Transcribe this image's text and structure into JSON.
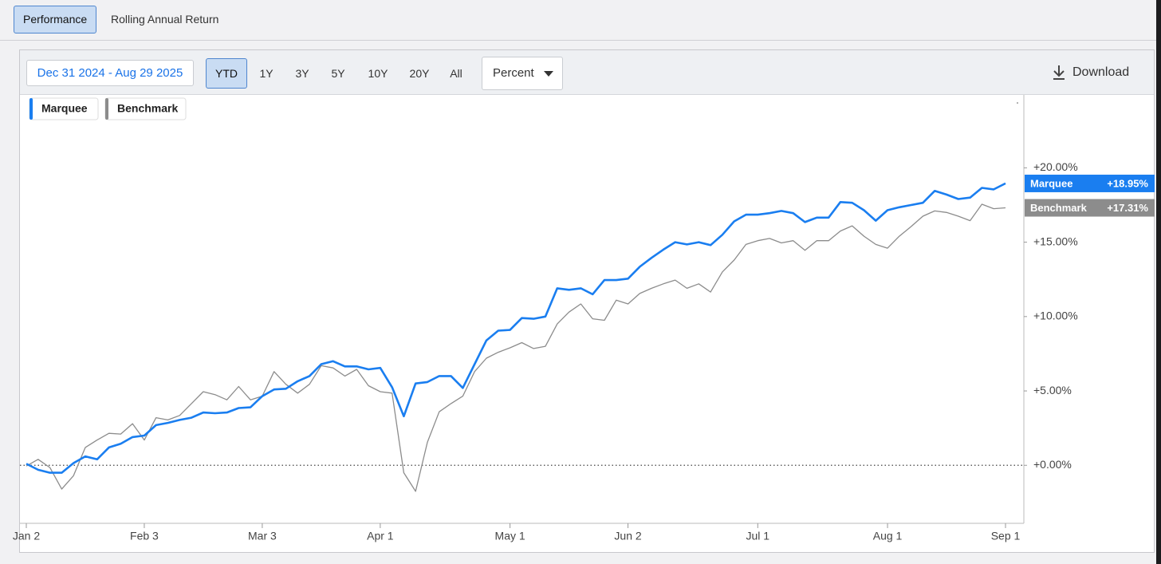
{
  "tabs": [
    "Performance",
    "Rolling Annual Return"
  ],
  "active_tab": 0,
  "date_range": "Dec 31 2024 - Aug 29 2025",
  "periods": [
    "YTD",
    "1Y",
    "3Y",
    "5Y",
    "10Y",
    "20Y",
    "All"
  ],
  "active_period": 0,
  "unit_menu": "Percent",
  "download": "Download",
  "chart_data": {
    "type": "line",
    "categories": [
      "Jan 2",
      null,
      null,
      null,
      null,
      null,
      null,
      null,
      null,
      null,
      "Feb 3",
      null,
      null,
      null,
      null,
      null,
      null,
      null,
      null,
      null,
      "Mar 3",
      null,
      null,
      null,
      null,
      null,
      null,
      null,
      null,
      null,
      "Apr 1",
      null,
      null,
      null,
      null,
      null,
      null,
      null,
      null,
      null,
      null,
      "May 1",
      null,
      null,
      null,
      null,
      null,
      null,
      null,
      null,
      null,
      "Jun 2",
      null,
      null,
      null,
      null,
      null,
      null,
      null,
      null,
      null,
      null,
      "Jul 1",
      null,
      null,
      null,
      null,
      null,
      null,
      null,
      null,
      null,
      null,
      "Aug 1",
      null,
      null,
      null,
      null,
      null,
      null,
      null,
      null,
      null,
      "Sep 1"
    ],
    "series": [
      {
        "name": "Marquee",
        "color": "#1a7ef0",
        "end_label": "+18.95%",
        "values": [
          0.1,
          -0.3,
          -0.5,
          -0.5,
          0.15,
          0.6,
          0.4,
          1.2,
          1.45,
          1.9,
          2.0,
          2.7,
          2.85,
          3.05,
          3.2,
          3.55,
          3.5,
          3.55,
          3.85,
          3.9,
          4.65,
          5.1,
          5.15,
          5.65,
          6.0,
          6.8,
          7.0,
          6.65,
          6.65,
          6.45,
          6.55,
          5.25,
          3.3,
          5.5,
          5.6,
          6.0,
          6.0,
          5.2,
          6.8,
          8.4,
          9.05,
          9.1,
          9.9,
          9.85,
          10.0,
          11.9,
          11.8,
          11.9,
          11.5,
          12.45,
          12.45,
          12.55,
          13.35,
          13.95,
          14.5,
          15.0,
          14.85,
          15.0,
          14.8,
          15.5,
          16.4,
          16.85,
          16.85,
          16.95,
          17.1,
          16.95,
          16.35,
          16.65,
          16.65,
          17.7,
          17.65,
          17.15,
          16.45,
          17.15,
          17.35,
          17.5,
          17.65,
          18.45,
          18.2,
          17.9,
          18.0,
          18.65,
          18.55,
          18.95
        ]
      },
      {
        "name": "Benchmark",
        "color": "#8c8c8c",
        "end_label": "+17.31%",
        "values": [
          -0.05,
          0.4,
          -0.15,
          -1.6,
          -0.7,
          1.2,
          1.7,
          2.15,
          2.1,
          2.8,
          1.7,
          3.2,
          3.05,
          3.35,
          4.15,
          4.95,
          4.75,
          4.4,
          5.3,
          4.4,
          4.65,
          6.3,
          5.45,
          4.85,
          5.45,
          6.7,
          6.55,
          6.0,
          6.45,
          5.35,
          4.95,
          4.85,
          -0.5,
          -1.75,
          1.55,
          3.6,
          4.15,
          4.65,
          6.3,
          7.2,
          7.6,
          7.9,
          8.25,
          7.85,
          8.0,
          9.5,
          10.3,
          10.85,
          9.85,
          9.75,
          11.1,
          10.85,
          11.55,
          11.9,
          12.2,
          12.45,
          11.9,
          12.2,
          11.65,
          13.0,
          13.8,
          14.85,
          15.1,
          15.25,
          14.95,
          15.1,
          14.45,
          15.1,
          15.1,
          15.75,
          16.1,
          15.4,
          14.85,
          14.6,
          15.4,
          16.05,
          16.75,
          17.1,
          17.0,
          16.75,
          16.45,
          17.55,
          17.25,
          17.31
        ]
      }
    ],
    "ylim": [
      -3.9,
      24.9
    ],
    "yticks": [
      {
        "value": 0,
        "label": "+0.00%"
      },
      {
        "value": 5,
        "label": "+5.00%"
      },
      {
        "value": 10,
        "label": "+10.00%"
      },
      {
        "value": 15,
        "label": "+15.00%"
      },
      {
        "value": 20,
        "label": "+20.00%"
      }
    ],
    "zero_line": true,
    "legend": "top-left",
    "axis_side": "right"
  }
}
